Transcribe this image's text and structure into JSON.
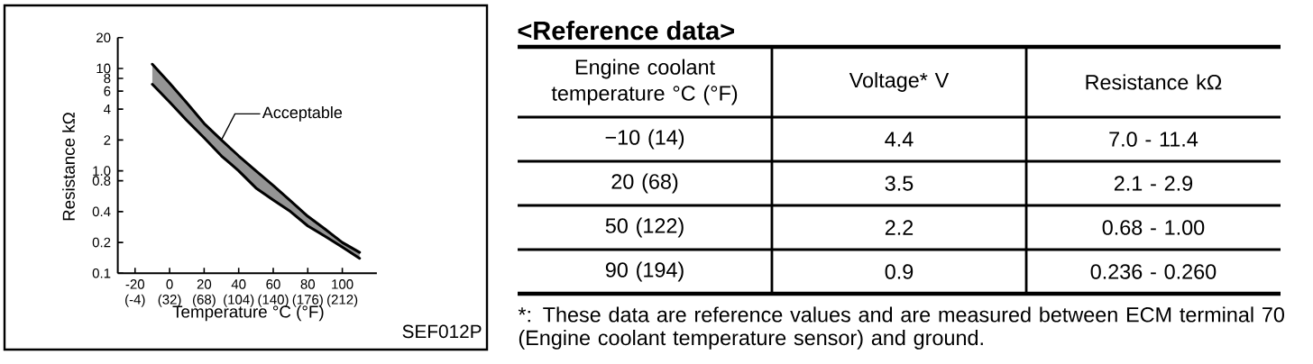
{
  "chart_data": [
    {
      "type": "line",
      "xlabel": "Temperature °C (°F)",
      "ylabel": "Resistance kΩ",
      "log": "y",
      "xlim": [
        -30,
        120
      ],
      "ylim": [
        0.1,
        20
      ],
      "xticks": [
        -20,
        0,
        20,
        40,
        60,
        80,
        100
      ],
      "x2lim": [
        -22,
        248
      ],
      "x2ticks": [
        {
          "value": -4,
          "label": "(-4)"
        },
        {
          "value": 32,
          "label": "(32)"
        },
        {
          "value": 68,
          "label": "(68)"
        },
        {
          "value": 104,
          "label": "(104)"
        },
        {
          "value": 140,
          "label": "(140)"
        },
        {
          "value": 176,
          "label": "(176)"
        },
        {
          "value": 212,
          "label": "(212)"
        }
      ],
      "yticks": [
        0.1,
        0.2,
        0.4,
        0.8,
        {
          "value": 1,
          "label": "1.0"
        },
        2,
        4,
        6,
        8,
        10,
        20
      ],
      "series": [
        {
          "color": "#000000",
          "x": [
            -10,
            0,
            10,
            20,
            30,
            40,
            50,
            60,
            70,
            80,
            90,
            100,
            110
          ],
          "values": [
            11,
            7.2,
            4.6,
            2.9,
            2.0,
            1.4,
            1.0,
            0.72,
            0.51,
            0.36,
            0.27,
            0.2,
            0.16
          ],
          "upper": [
            11,
            7.2,
            4.6,
            2.9,
            2.0,
            1.4,
            1.0,
            0.72,
            0.51,
            0.36,
            0.27,
            0.2,
            0.16
          ],
          "lower": [
            7.0,
            4.7,
            3.1,
            2.1,
            1.4,
            1.0,
            0.68,
            0.52,
            0.4,
            0.29,
            0.23,
            0.18,
            0.14
          ]
        },
        {
          "color": "#000000",
          "x": [
            -10,
            0,
            10,
            20,
            30,
            40,
            50,
            60,
            70,
            80,
            90,
            100,
            110
          ],
          "values": [
            7.0,
            4.7,
            3.1,
            2.1,
            1.4,
            1.0,
            0.68,
            0.52,
            0.4,
            0.29,
            0.23,
            0.18,
            0.14
          ]
        }
      ],
      "annotations": [
        {
          "text": "Acceptable",
          "x": 30,
          "y": 2
        },
        "SEF012P"
      ]
    },
    {
      "type": "other",
      "title": "<Reference data>",
      "annotations": [
        "Engine coolant temperature °C (°F)",
        "Voltage* V",
        "Resistance kΩ",
        "−10 (14)",
        "4.4",
        "7.0 - 11.4",
        "20 (68)",
        "3.5",
        "2.1 - 2.9",
        "50 (122)",
        "2.2",
        "0.68 - 1.00",
        "90 (194)",
        "0.9",
        "0.236 - 0.260",
        "*: These data are reference values and are measured between ECM terminal 70 (Engine coolant temperature sensor) and ground."
      ]
    }
  ]
}
